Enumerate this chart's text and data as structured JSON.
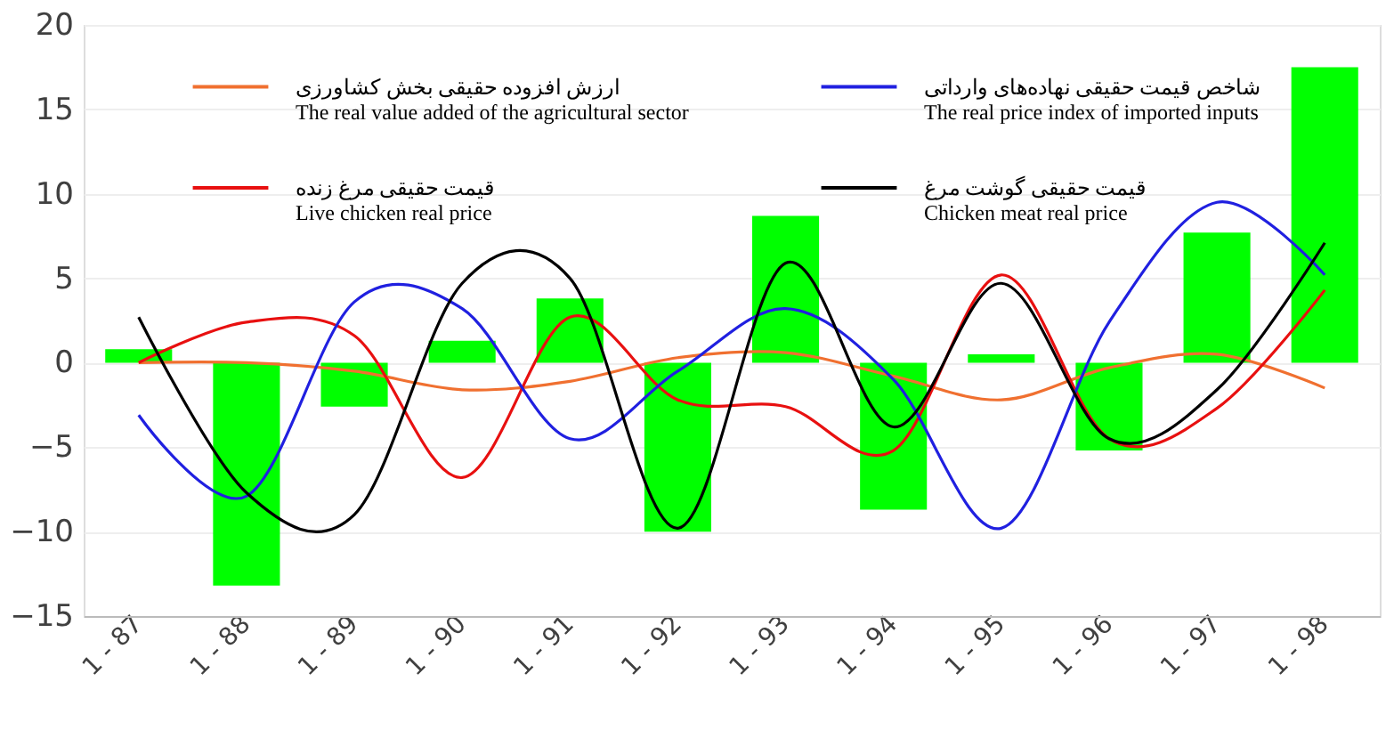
{
  "chart_data": {
    "type": "bar",
    "categories": [
      "1 - 87",
      "1 - 88",
      "1 - 89",
      "1 - 90",
      "1 - 91",
      "1 - 92",
      "1 - 93",
      "1 - 94",
      "1 - 95",
      "1 - 96",
      "1 - 97",
      "1 - 98"
    ],
    "series": [
      {
        "color": "#00ff00",
        "values": [
          0.8,
          -13.2,
          -2.6,
          1.3,
          3.8,
          -10.0,
          8.7,
          -8.7,
          0.5,
          -5.2,
          7.7,
          17.5
        ]
      },
      {
        "type": "line",
        "name": "ارزش افزوده حقیقی بخش کشاورزی\nThe real value added of the agricultural sector",
        "color": "#f07030",
        "values": [
          0,
          0,
          -0.5,
          -1.6,
          -1.1,
          0.3,
          0.6,
          -0.8,
          -2.2,
          -0.3,
          0.5,
          -1.5
        ]
      },
      {
        "type": "line",
        "name": "قیمت حقیقی مرغ زنده\nLive chicken real price",
        "color": "#e81010",
        "values": [
          0,
          2.4,
          1.6,
          -6.8,
          2.7,
          -2.2,
          -2.6,
          -5.2,
          5.2,
          -4.5,
          -2.7,
          4.3
        ]
      },
      {
        "type": "line",
        "name": "شاخص قیمت حقیقی نهاده‌های وارداتی\nThe real price index of imported inputs",
        "color": "#2020e0",
        "values": [
          -3.1,
          -7.9,
          3.6,
          3.2,
          -4.5,
          -0.5,
          3.2,
          -1.0,
          -9.8,
          2.4,
          9.5,
          5.2
        ]
      },
      {
        "type": "line",
        "name": "قیمت حقیقی گوشت مرغ\nChicken meat real price",
        "color": "#000000",
        "values": [
          2.7,
          -7.7,
          -9.0,
          4.7,
          5.0,
          -9.8,
          5.9,
          -3.8,
          4.7,
          -4.5,
          -1.6,
          7.1
        ]
      }
    ],
    "ylim": [
      -15,
      20
    ],
    "yticks": [
      -15,
      -10,
      -5,
      0,
      5,
      10,
      15,
      20
    ],
    "grid": "y",
    "legend": "top"
  }
}
